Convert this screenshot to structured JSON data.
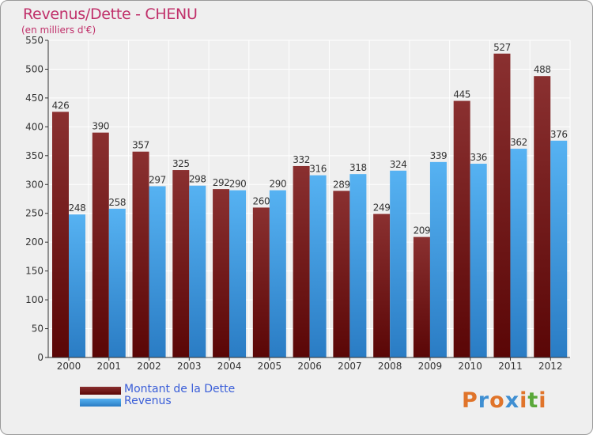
{
  "header": {
    "title": "Revenus/Dette - CHENU",
    "subtitle": "(en milliers d'€)"
  },
  "logo": {
    "text": "Proxiti",
    "letters": [
      {
        "ch": "P",
        "color": "#e0742a"
      },
      {
        "ch": "r",
        "color": "#3f8fd2"
      },
      {
        "ch": "o",
        "color": "#e0742a"
      },
      {
        "ch": "x",
        "color": "#3f8fd2"
      },
      {
        "ch": "i",
        "color": "#e0742a"
      },
      {
        "ch": "t",
        "color": "#5aa83a"
      },
      {
        "ch": "i",
        "color": "#e0742a"
      }
    ]
  },
  "chart_data": {
    "type": "bar",
    "title": "Revenus/Dette - CHENU",
    "subtitle": "(en milliers d'€)",
    "categories": [
      "2000",
      "2001",
      "2002",
      "2003",
      "2004",
      "2005",
      "2006",
      "2007",
      "2008",
      "2009",
      "2010",
      "2011",
      "2012"
    ],
    "series": [
      {
        "name": "Montant de la Dette",
        "color": "#7a1c1c",
        "values": [
          426,
          390,
          357,
          325,
          292,
          260,
          332,
          289,
          249,
          209,
          445,
          527,
          488
        ]
      },
      {
        "name": "Revenus",
        "color": "#3a9ae0",
        "values": [
          248,
          258,
          297,
          298,
          290,
          290,
          316,
          318,
          324,
          339,
          336,
          362,
          376
        ]
      }
    ],
    "ylim": [
      0,
      550
    ],
    "yticks": [
      0,
      50,
      100,
      150,
      200,
      250,
      300,
      350,
      400,
      450,
      500,
      550
    ],
    "grid": true,
    "legend": "bottom-left",
    "colors": {
      "debt_dark": "#5a0a0a",
      "debt_light": "#8a3030",
      "rev_dark": "#2a7cc4",
      "rev_light": "#55b0f0"
    }
  }
}
